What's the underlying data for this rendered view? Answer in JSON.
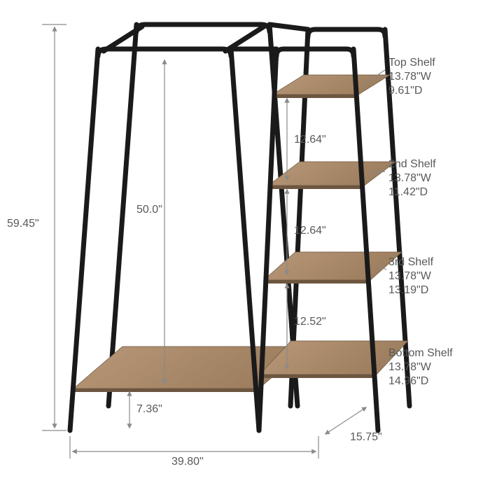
{
  "colors": {
    "frame": "#1a1a1a",
    "wood_light": "#b89878",
    "wood_dark": "#9c7d5e",
    "wood_edge": "#6d5640",
    "dim_line": "#8a8a8a",
    "text": "#595959",
    "bg": "#ffffff"
  },
  "dimensions": {
    "height_total": "59.45\"",
    "hanging_drop": "50.0\"",
    "bottom_gap": "7.36\"",
    "width_total": "39.80\"",
    "depth_total": "15.75\"",
    "shelf_gap_1": "12.64\"",
    "shelf_gap_2": "12.64\"",
    "shelf_gap_3": "12.52\""
  },
  "shelves": {
    "top": {
      "title": "Top Shelf",
      "w": "13.78\"W",
      "d": "9.61\"D"
    },
    "second": {
      "title": "2nd Shelf",
      "w": "13.78\"W",
      "d": "11.42\"D"
    },
    "third": {
      "title": "3rd Shelf",
      "w": "13.78\"W",
      "d": "13.19\"D"
    },
    "bottom": {
      "title": "Bottom Shelf",
      "w": "13.78\"W",
      "d": "14.96\"D"
    }
  },
  "geometry": {
    "frame_stroke": 7,
    "dim_stroke": 1.2,
    "arrow_size": 6
  }
}
